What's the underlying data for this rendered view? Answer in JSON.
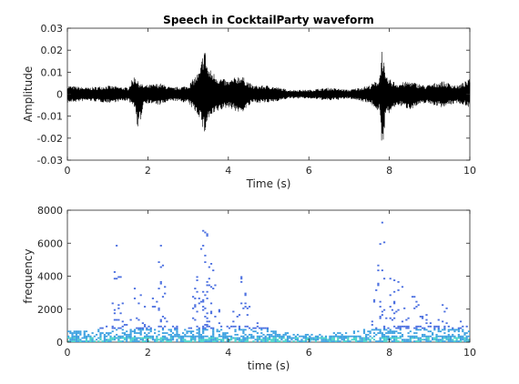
{
  "chart_data": [
    {
      "type": "line",
      "title": "Speech in CocktailParty waveform",
      "xlabel": "Time (s)",
      "ylabel": "Amplitude",
      "xlim": [
        0,
        10
      ],
      "ylim": [
        -0.03,
        0.03
      ],
      "xticks": [
        0,
        2,
        4,
        6,
        8,
        10
      ],
      "xtick_labels": [
        "0",
        "2",
        "4",
        "6",
        "8",
        "10"
      ],
      "yticks": [
        0.03,
        0.02,
        0.01,
        0,
        -0.01,
        -0.02,
        -0.03
      ],
      "ytick_labels": [
        "0.03",
        "0.02",
        "0.01",
        "0",
        "-0.01",
        "-0.02",
        "-0.03"
      ],
      "line_color": "#000000",
      "grid": false,
      "series": [
        {
          "envelope_x": [
            0,
            0.5,
            1.0,
            1.5,
            1.68,
            1.75,
            1.9,
            2.3,
            2.6,
            3.0,
            3.3,
            3.4,
            3.5,
            3.75,
            4.0,
            4.3,
            4.6,
            5.0,
            5.5,
            6.0,
            6.5,
            7.0,
            7.5,
            7.75,
            7.82,
            7.9,
            8.2,
            8.5,
            8.9,
            9.3,
            9.7,
            10.0
          ],
          "envelope_upper": [
            0.004,
            0.003,
            0.004,
            0.003,
            0.009,
            0.006,
            0.004,
            0.005,
            0.003,
            0.004,
            0.011,
            0.023,
            0.012,
            0.008,
            0.006,
            0.009,
            0.004,
            0.004,
            0.002,
            0.002,
            0.003,
            0.002,
            0.004,
            0.007,
            0.022,
            0.008,
            0.005,
            0.006,
            0.004,
            0.006,
            0.004,
            0.007
          ],
          "envelope_lower": [
            -0.004,
            -0.003,
            -0.004,
            -0.003,
            -0.006,
            -0.019,
            -0.004,
            -0.005,
            -0.003,
            -0.004,
            -0.011,
            -0.019,
            -0.012,
            -0.008,
            -0.006,
            -0.009,
            -0.004,
            -0.004,
            -0.002,
            -0.002,
            -0.003,
            -0.002,
            -0.004,
            -0.008,
            -0.028,
            -0.011,
            -0.005,
            -0.007,
            -0.004,
            -0.006,
            -0.004,
            -0.006
          ]
        }
      ]
    },
    {
      "type": "heatmap",
      "title": "",
      "xlabel": "time (s)",
      "ylabel": "frequency",
      "xlim": [
        0,
        10
      ],
      "ylim": [
        0,
        8000
      ],
      "xticks": [
        0,
        2,
        4,
        6,
        8,
        10
      ],
      "xtick_labels": [
        "0",
        "2",
        "4",
        "6",
        "8",
        "10"
      ],
      "yticks": [
        8000,
        6000,
        4000,
        2000,
        0
      ],
      "ytick_labels": [
        "8000",
        "6000",
        "4000",
        "2000",
        "0"
      ],
      "grid": false,
      "colors": [
        "#4a6ee0",
        "#3ba0e0",
        "#46d2c8"
      ],
      "energy_profile": {
        "t": [
          0,
          0.5,
          1.0,
          1.2,
          1.5,
          1.7,
          1.8,
          2.0,
          2.3,
          2.5,
          2.8,
          3.0,
          3.4,
          3.5,
          3.8,
          4.2,
          4.3,
          4.6,
          5.0,
          5.5,
          6.0,
          6.5,
          7.0,
          7.5,
          7.8,
          7.9,
          8.3,
          8.6,
          9.0,
          9.3,
          9.7,
          10.0
        ],
        "max_freq": [
          700,
          600,
          1000,
          6000,
          700,
          4800,
          3000,
          1200,
          6000,
          1500,
          800,
          1200,
          7500,
          6000,
          1200,
          2200,
          4200,
          1500,
          800,
          500,
          500,
          500,
          600,
          800,
          7500,
          4800,
          3500,
          3000,
          1200,
          2500,
          1200,
          1500
        ]
      }
    }
  ]
}
